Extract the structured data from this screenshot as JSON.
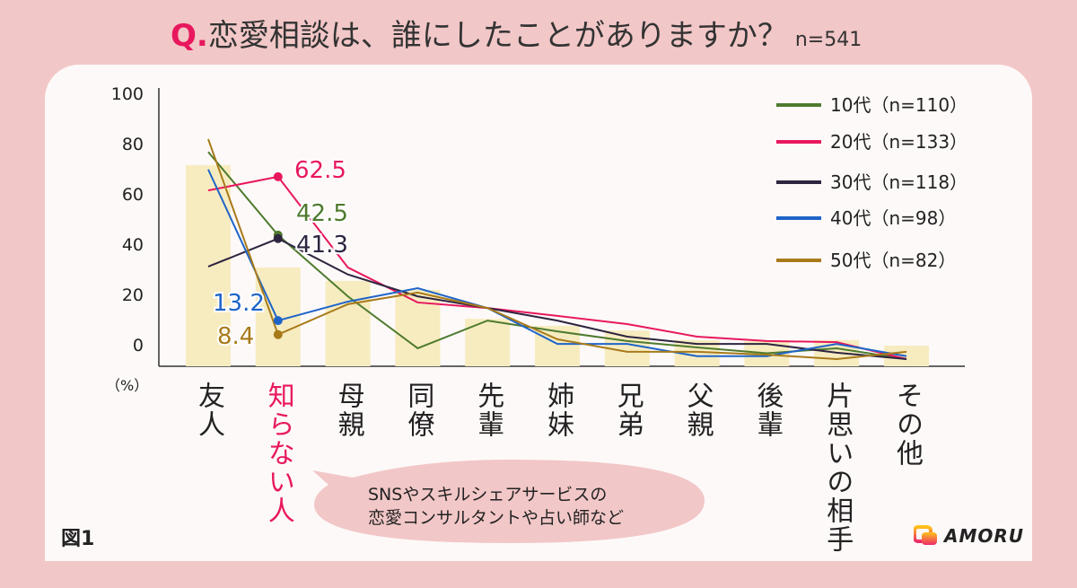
{
  "title": {
    "prefix": "Q.",
    "question": "恋愛相談は、誰にしたことがありますか？",
    "n": "n=541"
  },
  "figure_label": "図1",
  "unit_label": "（%）",
  "callout": {
    "line1": "SNSやスキルシェアサービスの",
    "line2": "恋愛コンサルタントや占い師など"
  },
  "logo": {
    "text": "AMORU"
  },
  "chart_data": {
    "type": "bar+line",
    "ylim": [
      0,
      100
    ],
    "yticks": [
      "100",
      "80",
      "60",
      "40",
      "20",
      "0"
    ],
    "categories": [
      "友人",
      "知らない人",
      "母親",
      "同僚",
      "先輩",
      "姉妹",
      "兄弟",
      "父親",
      "後輩",
      "片思いの相手",
      "その他"
    ],
    "highlight_category": "知らない人",
    "bar_color": "#f7ecc0",
    "bars": [
      66.5,
      31.4,
      26.8,
      23.7,
      13.8,
      11.4,
      9.8,
      6.5,
      6.2,
      6.5,
      4.6
    ],
    "series": [
      {
        "name": "10代（n=110）",
        "color": "#4e7a2e",
        "values": [
          71,
          42.5,
          21.5,
          3.7,
          13.2,
          9.5,
          6.2,
          4,
          2,
          3.7,
          0
        ]
      },
      {
        "name": "20代（n=133）",
        "color": "#e8185e",
        "values": [
          57.8,
          62.5,
          31.4,
          19.4,
          17.5,
          14.8,
          12,
          7.7,
          6.2,
          5.8,
          0
        ]
      },
      {
        "name": "30代（n=118）",
        "color": "#2e2540",
        "values": [
          31.7,
          41.3,
          29,
          21.5,
          17.5,
          13.2,
          7.7,
          5.2,
          5.2,
          2.2,
          0
        ]
      },
      {
        "name": "40代（n=98）",
        "color": "#1e64c8",
        "values": [
          65,
          13.2,
          19.7,
          24.3,
          17.5,
          5.2,
          5.2,
          1,
          1,
          5.2,
          1
        ]
      },
      {
        "name": "50代（n=82）",
        "color": "#a87a1a",
        "values": [
          75.4,
          8.4,
          18.8,
          22.8,
          17.5,
          6.8,
          2.5,
          2.5,
          1.5,
          0,
          2.5
        ]
      }
    ],
    "data_labels": [
      {
        "series": 1,
        "category": 1,
        "text": "62.5"
      },
      {
        "series": 0,
        "category": 1,
        "text": "42.5"
      },
      {
        "series": 2,
        "category": 1,
        "text": "41.3"
      },
      {
        "series": 3,
        "category": 1,
        "text": "13.2"
      },
      {
        "series": 4,
        "category": 1,
        "text": "8.4"
      }
    ],
    "legend_position": "top-right",
    "grid": false
  }
}
